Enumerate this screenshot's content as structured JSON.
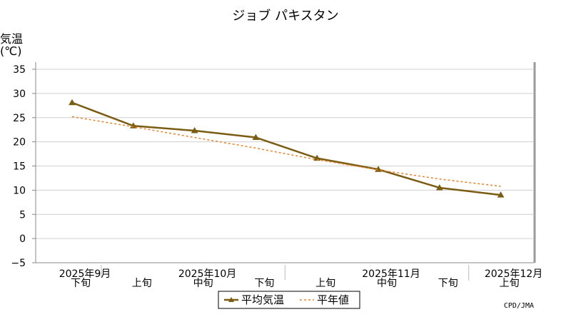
{
  "chart_data": {
    "type": "line",
    "title": "ジョブ パキスタン",
    "ylabel_line1": "気温",
    "ylabel_line2": "(℃)",
    "ylim": [
      -5,
      35
    ],
    "yticks": [
      -5,
      0,
      5,
      10,
      15,
      20,
      25,
      30,
      35
    ],
    "grid": true,
    "legend_position": "bottom-center",
    "categories": [
      "2025年9月下旬",
      "2025年10月上旬",
      "2025年10月中旬",
      "2025年10月下旬",
      "2025年11月上旬",
      "2025年11月中旬",
      "2025年11月下旬",
      "2025年12月上旬"
    ],
    "dekad_labels": [
      "下旬",
      "上旬",
      "中旬",
      "下旬",
      "上旬",
      "中旬",
      "下旬",
      "上旬"
    ],
    "month_labels": [
      {
        "text": "2025年9月",
        "index": 0
      },
      {
        "text": "2025年10月",
        "index": 2
      },
      {
        "text": "2025年11月",
        "index": 5
      },
      {
        "text": "2025年12月",
        "index": 7
      }
    ],
    "series": [
      {
        "name": "平均気温",
        "values": [
          28.1,
          23.3,
          22.3,
          20.9,
          16.6,
          14.3,
          10.5,
          9.0
        ],
        "color": "#7a5c12",
        "style": "solid",
        "marker": "triangle"
      },
      {
        "name": "平年値",
        "values": [
          25.2,
          23.1,
          20.9,
          18.7,
          16.3,
          14.2,
          12.3,
          10.8
        ],
        "color": "#e8822a",
        "style": "dotted"
      }
    ],
    "credit": "CPD/JMA"
  }
}
